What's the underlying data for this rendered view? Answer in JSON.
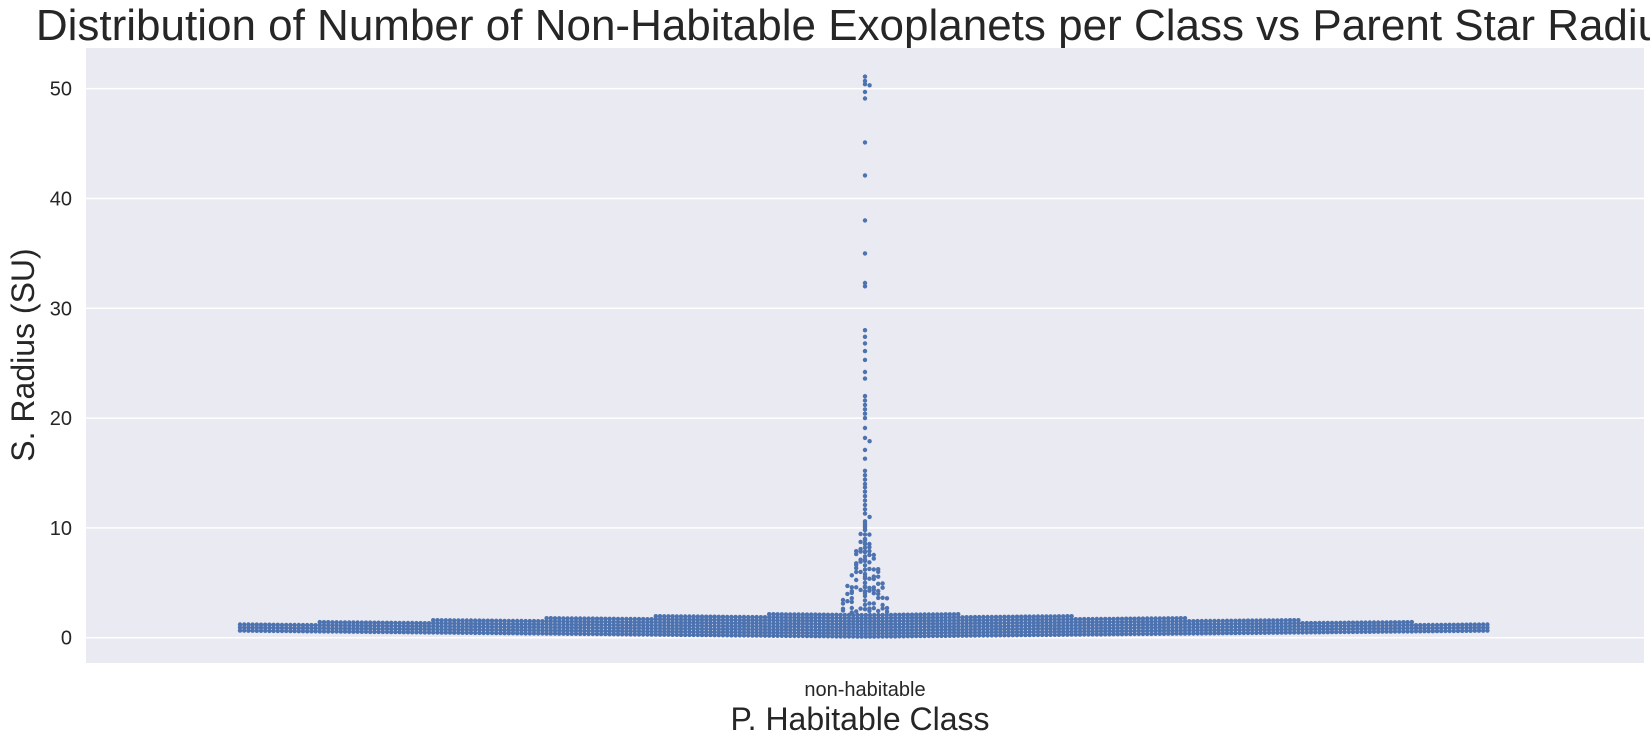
{
  "chart_data": {
    "type": "scatter",
    "subtype": "swarm",
    "title": "Distribution of Number of Non-Habitable Exoplanets per Class vs Parent Star Radius",
    "xlabel": "P. Habitable Class",
    "ylabel": "S. Radius (SU)",
    "categories": [
      "non-habitable"
    ],
    "ylim": [
      -2.3,
      53.7
    ],
    "yticks": [
      0,
      10,
      20,
      30,
      40,
      50
    ],
    "grid": true,
    "legend": "none",
    "colors": {
      "points": "#4c72b0",
      "plot_bg": "#eaeaf2",
      "grid": "#ffffff",
      "text": "#262626"
    },
    "series": [
      {
        "category": "non-habitable",
        "dense_band": {
          "y_range": [
            0.1,
            2.3
          ],
          "note_values": "thousands of points at small radii"
        },
        "outlier_values": [
          51.1,
          50.7,
          50.4,
          50.3,
          49.7,
          49.1,
          45.1,
          42.1,
          38.0,
          35.0,
          32.3,
          32.0,
          28.0,
          27.4,
          26.8,
          26.1,
          25.3,
          24.2,
          23.6,
          22.0,
          21.6,
          21.2,
          20.8,
          20.4,
          20.0,
          19.1,
          18.2,
          17.9,
          17.1,
          16.3,
          15.2,
          14.8,
          14.4,
          14.0,
          13.7,
          13.3,
          12.9,
          12.5,
          12.1,
          11.7,
          11.3,
          11.0,
          10.6,
          10.2,
          9.8,
          9.4,
          9.0,
          8.6,
          8.2,
          7.8,
          7.4,
          7.0,
          6.6,
          6.2,
          5.8,
          5.4,
          5.0,
          4.6,
          4.2,
          3.8,
          3.4,
          3.0,
          2.6
        ]
      }
    ]
  }
}
